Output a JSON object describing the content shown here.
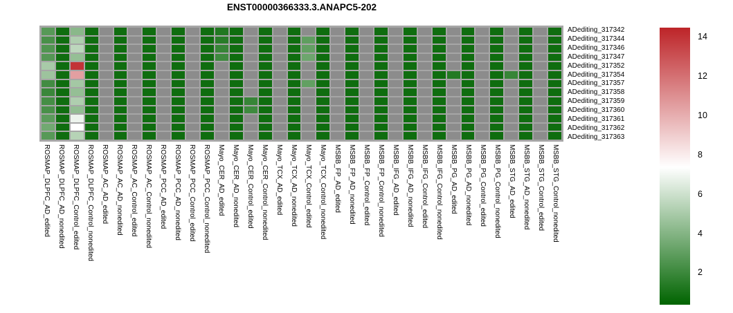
{
  "title": "ENST00000366333.3.ANAPC5-202",
  "colors": {
    "background": "#ffffff",
    "grid": "#a6a6a6",
    "na_cell": "#8c8c8c",
    "text": "#000000"
  },
  "chart_data": {
    "type": "heatmap",
    "title": "ENST00000366333.3.ANAPC5-202",
    "legend_position": "right",
    "na_meaning": "gray cell = no data",
    "rows": [
      "ADediting_317342",
      "ADediting_317344",
      "ADediting_317346",
      "ADediting_317347",
      "ADediting_317352",
      "ADediting_317354",
      "ADediting_317357",
      "ADediting_317358",
      "ADediting_317359",
      "ADediting_317360",
      "ADediting_317361",
      "ADediting_317362",
      "ADediting_317363"
    ],
    "columns": [
      "ROSMAP_DLPFC_AD_edited",
      "ROSMAP_DLPFC_AD_nonedited",
      "ROSMAP_DLPFC_Control_edited",
      "ROSMAP_DLPFC_Control_nonedited",
      "ROSMAP_AC_AD_edited",
      "ROSMAP_AC_AD_nonedited",
      "ROSMAP_AC_Control_edited",
      "ROSMAP_AC_Control_nonedited",
      "ROSMAP_PCC_AD_edited",
      "ROSMAP_PCC_AD_nonedited",
      "ROSMAP_PCC_Control_edited",
      "ROSMAP_PCC_Control_nonedited",
      "Mayo_CER_AD_edited",
      "Mayo_CER_AD_nonedited",
      "Mayo_CER_Control_edited",
      "Mayo_CER_Control_nonedited",
      "Mayo_TCX_AD_edited",
      "Mayo_TCX_AD_nonedited",
      "Mayo_TCX_Control_edited",
      "Mayo_TCX_Control_nonedited",
      "MSBB_FP_AD_edited",
      "MSBB_FP_AD_nonedited",
      "MSBB_FP_Control_edited",
      "MSBB_FP_Control_nonedited",
      "MSBB_IFG_AD_edited",
      "MSBB_IFG_AD_nonedited",
      "MSBB_IFG_Control_edited",
      "MSBB_IFG_Control_nonedited",
      "MSBB_PG_AD_edited",
      "MSBB_PG_AD_nonedited",
      "MSBB_PG_Control_edited",
      "MSBB_PG_Control_nonedited",
      "MSBB_STG_AD_edited",
      "MSBB_STG_AD_nonedited",
      "MSBB_STG_Control_edited",
      "MSBB_STG_Control_nonedited"
    ],
    "values": [
      [
        2.8,
        0.8,
        4.2,
        0.8,
        null,
        0.8,
        null,
        0.8,
        null,
        0.8,
        null,
        0.8,
        1.3,
        0.8,
        null,
        0.8,
        null,
        0.8,
        null,
        0.8,
        null,
        0.8,
        null,
        0.8,
        null,
        0.8,
        null,
        0.8,
        null,
        0.8,
        null,
        0.8,
        null,
        0.8,
        null,
        0.8
      ],
      [
        2.4,
        0.8,
        5.2,
        0.8,
        null,
        0.8,
        null,
        0.8,
        null,
        0.8,
        null,
        0.8,
        1.5,
        0.8,
        null,
        0.8,
        null,
        0.8,
        3.0,
        0.8,
        null,
        0.8,
        null,
        0.8,
        null,
        0.8,
        null,
        0.8,
        null,
        0.8,
        null,
        0.8,
        null,
        0.8,
        null,
        0.8
      ],
      [
        2.6,
        0.8,
        5.6,
        0.8,
        null,
        0.8,
        null,
        0.8,
        null,
        0.8,
        null,
        0.8,
        1.9,
        0.8,
        null,
        0.8,
        null,
        0.8,
        3.1,
        0.8,
        null,
        0.8,
        null,
        0.8,
        null,
        0.8,
        null,
        0.8,
        null,
        0.8,
        null,
        0.8,
        null,
        0.8,
        null,
        0.8
      ],
      [
        2.7,
        0.8,
        4.5,
        0.8,
        null,
        0.8,
        null,
        0.8,
        null,
        0.8,
        null,
        0.8,
        2.1,
        0.8,
        null,
        0.8,
        null,
        0.8,
        3.4,
        0.8,
        null,
        0.8,
        null,
        0.8,
        null,
        0.8,
        null,
        0.8,
        null,
        0.8,
        null,
        0.8,
        null,
        0.8,
        null,
        0.8
      ],
      [
        5.0,
        0.8,
        14.0,
        0.8,
        null,
        0.8,
        null,
        0.8,
        null,
        0.8,
        null,
        0.8,
        null,
        0.8,
        null,
        0.8,
        null,
        0.8,
        null,
        0.8,
        null,
        0.8,
        null,
        0.8,
        null,
        0.8,
        null,
        0.8,
        null,
        0.8,
        null,
        0.8,
        null,
        0.8,
        null,
        0.8
      ],
      [
        4.7,
        0.8,
        10.5,
        0.8,
        null,
        0.8,
        null,
        0.8,
        null,
        0.8,
        null,
        0.8,
        null,
        0.8,
        null,
        0.8,
        null,
        0.8,
        null,
        0.8,
        null,
        0.8,
        null,
        0.8,
        null,
        0.8,
        null,
        0.8,
        1.4,
        0.8,
        null,
        0.8,
        1.9,
        0.8,
        null,
        0.8
      ],
      [
        2.2,
        0.8,
        4.9,
        0.8,
        null,
        0.8,
        null,
        0.8,
        null,
        0.8,
        null,
        0.8,
        null,
        0.8,
        null,
        0.8,
        null,
        0.8,
        3.1,
        0.8,
        null,
        0.8,
        null,
        0.8,
        null,
        0.8,
        null,
        0.8,
        null,
        0.8,
        null,
        0.8,
        null,
        0.8,
        null,
        0.8
      ],
      [
        2.0,
        0.8,
        4.5,
        0.8,
        null,
        0.8,
        null,
        0.8,
        null,
        0.8,
        null,
        0.8,
        null,
        0.8,
        null,
        0.8,
        null,
        0.8,
        null,
        0.8,
        null,
        0.8,
        null,
        0.8,
        null,
        0.8,
        null,
        0.8,
        null,
        0.8,
        null,
        0.8,
        null,
        0.8,
        null,
        0.8
      ],
      [
        2.3,
        0.8,
        5.2,
        0.8,
        null,
        0.8,
        null,
        0.8,
        null,
        0.8,
        null,
        0.8,
        null,
        0.8,
        1.9,
        0.8,
        null,
        0.8,
        null,
        0.8,
        null,
        0.8,
        null,
        0.8,
        null,
        0.8,
        null,
        0.8,
        null,
        0.8,
        null,
        0.8,
        null,
        0.8,
        null,
        0.8
      ],
      [
        2.4,
        0.8,
        4.4,
        0.8,
        null,
        0.8,
        null,
        0.8,
        null,
        0.8,
        null,
        0.8,
        null,
        0.8,
        2.1,
        0.8,
        null,
        0.8,
        null,
        0.8,
        null,
        0.8,
        null,
        0.8,
        null,
        0.8,
        null,
        0.8,
        null,
        0.8,
        null,
        0.8,
        null,
        0.8,
        null,
        0.8
      ],
      [
        2.9,
        0.8,
        6.9,
        0.8,
        null,
        0.8,
        null,
        0.8,
        null,
        0.8,
        null,
        0.8,
        null,
        0.8,
        null,
        0.8,
        null,
        0.8,
        null,
        0.8,
        null,
        0.8,
        null,
        0.8,
        null,
        0.8,
        null,
        0.8,
        null,
        0.8,
        null,
        0.8,
        null,
        0.8,
        null,
        0.8
      ],
      [
        3.5,
        0.8,
        7.4,
        0.8,
        null,
        0.8,
        null,
        0.8,
        null,
        0.8,
        null,
        0.8,
        null,
        0.8,
        null,
        0.8,
        null,
        0.8,
        null,
        0.8,
        null,
        0.8,
        null,
        0.8,
        null,
        0.8,
        null,
        0.8,
        null,
        0.8,
        null,
        0.8,
        null,
        0.8,
        null,
        0.8
      ],
      [
        2.8,
        0.8,
        5.4,
        0.8,
        null,
        0.8,
        null,
        0.8,
        null,
        0.8,
        null,
        0.8,
        null,
        0.8,
        null,
        0.8,
        null,
        0.8,
        null,
        0.8,
        null,
        0.8,
        null,
        0.8,
        null,
        0.8,
        null,
        0.8,
        null,
        0.8,
        null,
        0.8,
        null,
        0.8,
        null,
        0.8
      ]
    ],
    "colorbar": {
      "ticks": [
        2,
        4,
        6,
        8,
        10,
        12,
        14
      ],
      "vmin": 0.4,
      "vmid_white": 7.4,
      "vmax": 14.5,
      "min_color": "#006400",
      "mid_color": "#ffffff",
      "max_color": "#bd2428"
    }
  }
}
